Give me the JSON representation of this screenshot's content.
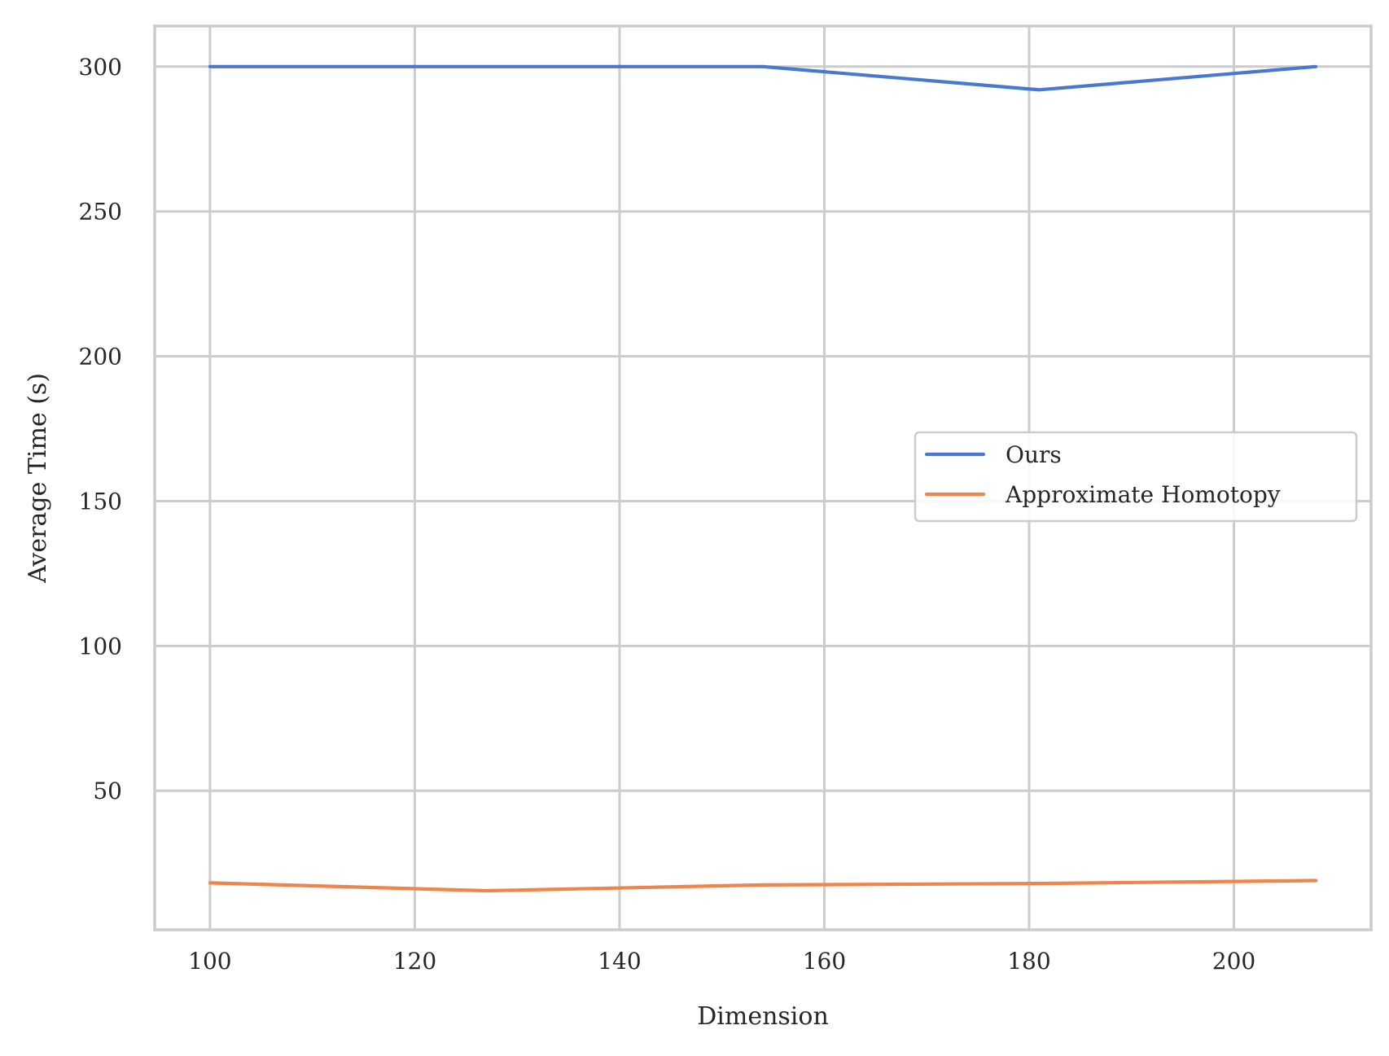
{
  "chart_data": {
    "type": "line",
    "title": "",
    "xlabel": "Dimension",
    "ylabel": "Average Time (s)",
    "xlim": [
      94.6,
      213.4
    ],
    "ylim": [
      2.0,
      314.0
    ],
    "xticks": [
      100,
      120,
      140,
      160,
      180,
      200
    ],
    "yticks": [
      50,
      100,
      150,
      200,
      250,
      300
    ],
    "xtick_labels": [
      "100",
      "120",
      "140",
      "160",
      "180",
      "200"
    ],
    "ytick_labels": [
      "50",
      "100",
      "150",
      "200",
      "250",
      "300"
    ],
    "grid": true,
    "legend": {
      "position": "center-right",
      "entries": [
        "Ours",
        "Approximate Homotopy"
      ]
    },
    "series": [
      {
        "name": "Ours",
        "color": "#4878d0",
        "x": [
          100,
          127,
          154,
          181,
          208
        ],
        "y": [
          300,
          300,
          300,
          292,
          300
        ]
      },
      {
        "name": "Approximate Homotopy",
        "color": "#ee854a",
        "x": [
          100,
          127,
          154,
          181,
          208
        ],
        "y": [
          18.2,
          15.5,
          17.5,
          18.0,
          19.0
        ]
      }
    ]
  }
}
